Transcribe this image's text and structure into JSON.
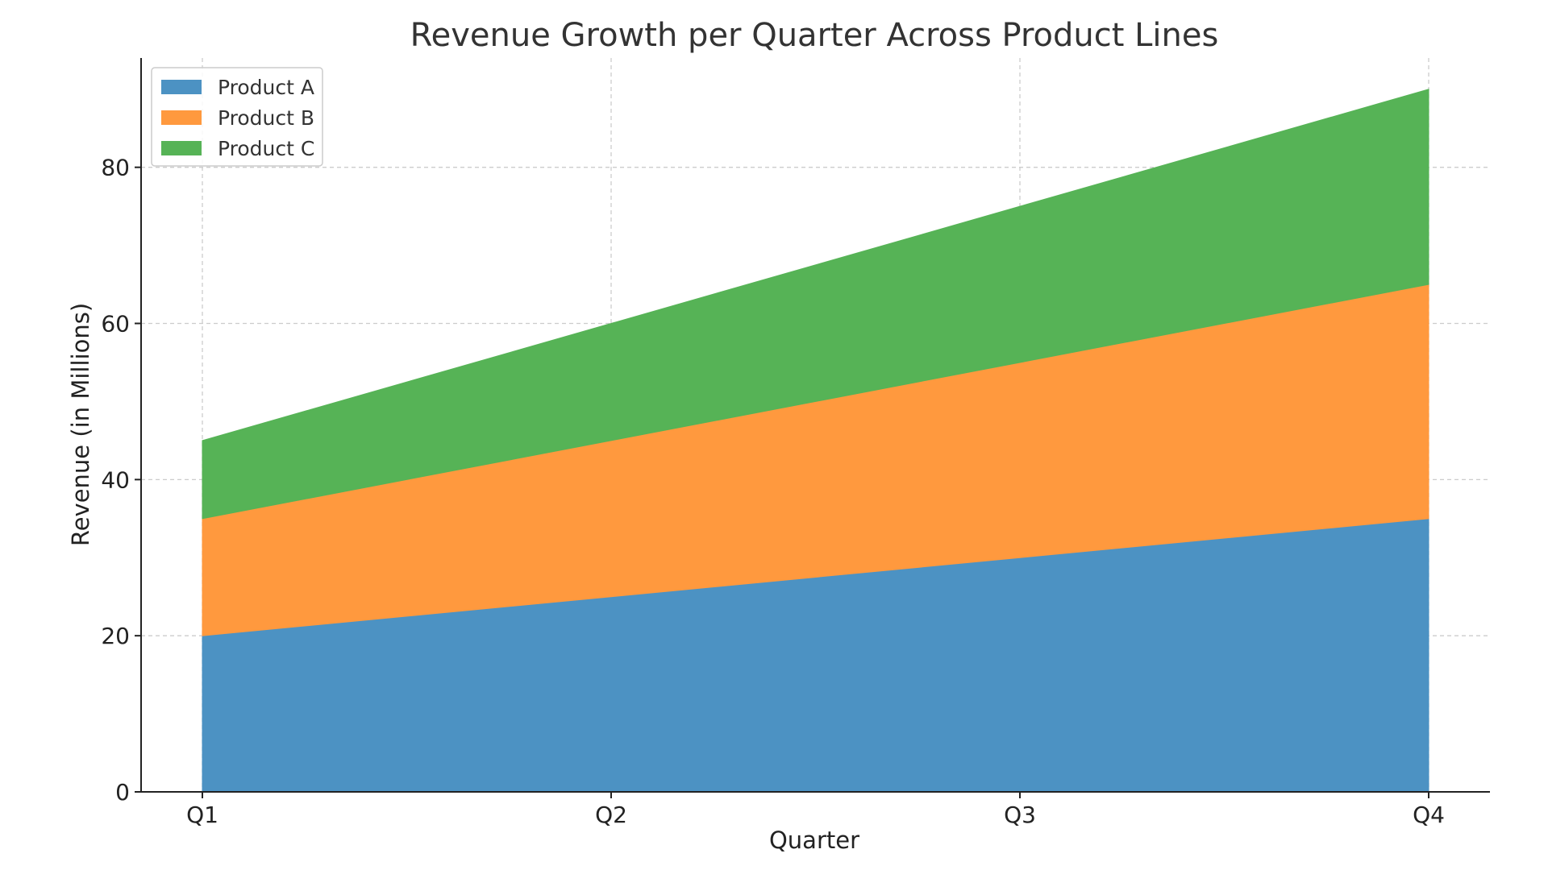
{
  "chart_data": {
    "type": "area",
    "stacked": true,
    "title": "Revenue Growth per Quarter Across Product Lines",
    "xlabel": "Quarter",
    "ylabel": "Revenue (in Millions)",
    "categories": [
      "Q1",
      "Q2",
      "Q3",
      "Q4"
    ],
    "series": [
      {
        "name": "Product A",
        "color": "#4c92c3",
        "values": [
          20,
          25,
          30,
          35
        ]
      },
      {
        "name": "Product B",
        "color": "#ff993e",
        "values": [
          15,
          20,
          25,
          30
        ]
      },
      {
        "name": "Product C",
        "color": "#56b356",
        "values": [
          10,
          15,
          20,
          25
        ]
      }
    ],
    "ylim": [
      0,
      94
    ],
    "yticks": [
      0,
      20,
      40,
      60,
      80
    ],
    "grid": true,
    "legend_position": "top-left"
  }
}
